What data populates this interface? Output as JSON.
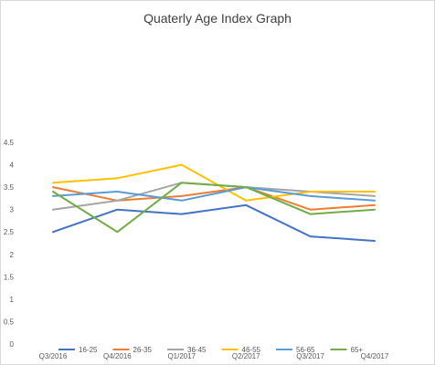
{
  "chart_data": {
    "type": "line",
    "title": "Quaterly Age Index Graph",
    "categories": [
      "Q3/2016",
      "Q4/2016",
      "Q1/2017",
      "Q2/2017",
      "Q3/2017",
      "Q4/2017"
    ],
    "ylim": [
      0,
      4.5
    ],
    "yticks": [
      "0",
      "0.5",
      "1",
      "1.5",
      "2",
      "2.5",
      "3",
      "3.5",
      "4",
      "4.5"
    ],
    "grid": false,
    "legend": "bottom",
    "series": [
      {
        "name": "16-25",
        "color": "#4472c4",
        "values": [
          2.5,
          3.0,
          2.9,
          3.1,
          2.4,
          2.3
        ]
      },
      {
        "name": "26-35",
        "color": "#ed7d31",
        "values": [
          3.5,
          3.2,
          3.3,
          3.5,
          3.0,
          3.1
        ]
      },
      {
        "name": "36-45",
        "color": "#a5a5a5",
        "values": [
          3.0,
          3.2,
          3.6,
          3.5,
          3.4,
          3.3
        ]
      },
      {
        "name": "46-55",
        "color": "#ffc000",
        "values": [
          3.6,
          3.7,
          4.0,
          3.2,
          3.4,
          3.4
        ]
      },
      {
        "name": "56-65",
        "color": "#5b9bd5",
        "values": [
          3.3,
          3.4,
          3.2,
          3.5,
          3.3,
          3.2
        ]
      },
      {
        "name": "65+",
        "color": "#70ad47",
        "values": [
          3.4,
          2.5,
          3.6,
          3.5,
          2.9,
          3.0
        ]
      }
    ]
  }
}
